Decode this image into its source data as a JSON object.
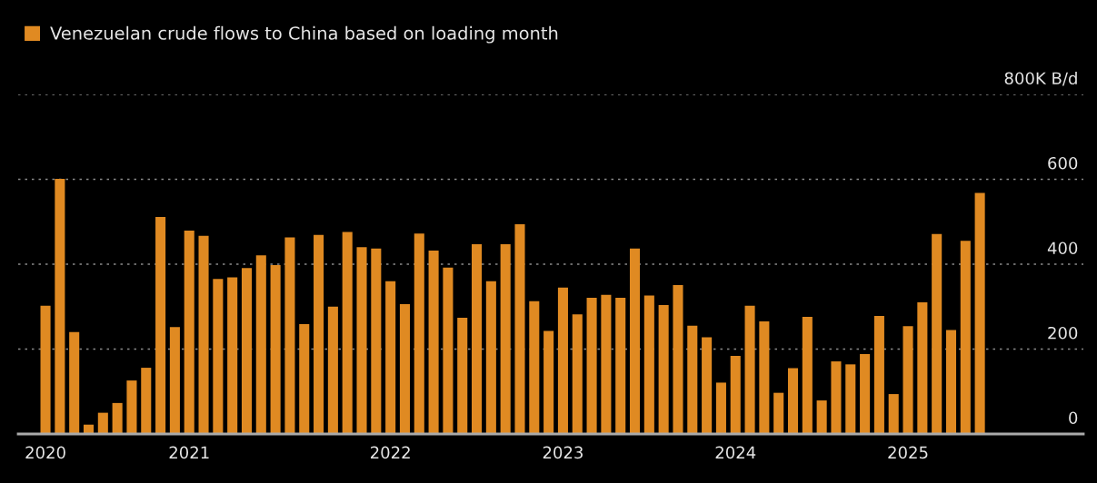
{
  "chart_data": {
    "type": "bar",
    "categories": [
      "2020",
      null,
      null,
      null,
      null,
      null,
      null,
      null,
      null,
      null,
      "2021",
      null,
      null,
      null,
      null,
      null,
      null,
      null,
      null,
      null,
      null,
      null,
      null,
      null,
      "2022",
      null,
      null,
      null,
      null,
      null,
      null,
      null,
      null,
      null,
      null,
      null,
      "2023",
      null,
      null,
      null,
      null,
      null,
      null,
      null,
      null,
      null,
      null,
      null,
      "2024",
      null,
      null,
      null,
      null,
      null,
      null,
      null,
      null,
      null,
      null,
      null,
      "2025",
      null,
      null,
      null,
      null,
      null
    ],
    "series": [
      {
        "name": "Venezuelan crude flows to China based on loading month",
        "color": "#e08a22",
        "values": [
          302,
          601,
          240,
          22,
          50,
          73,
          126,
          156,
          511,
          252,
          479,
          467,
          365,
          369,
          391,
          421,
          398,
          463,
          259,
          469,
          300,
          476,
          440,
          437,
          360,
          306,
          472,
          432,
          392,
          274,
          447,
          360,
          447,
          494,
          313,
          243,
          345,
          282,
          321,
          328,
          321,
          437,
          326,
          304,
          351,
          255,
          228,
          121,
          184,
          302,
          265,
          97,
          155,
          276,
          79,
          171,
          164,
          188,
          278,
          94,
          254,
          310,
          471,
          245,
          455,
          568
        ]
      }
    ],
    "ylim": [
      0,
      800
    ],
    "yticks": [
      0,
      200,
      400,
      600,
      {
        "value": 800,
        "label": "800K B/d"
      }
    ],
    "grid": "y",
    "legend": "top left"
  }
}
